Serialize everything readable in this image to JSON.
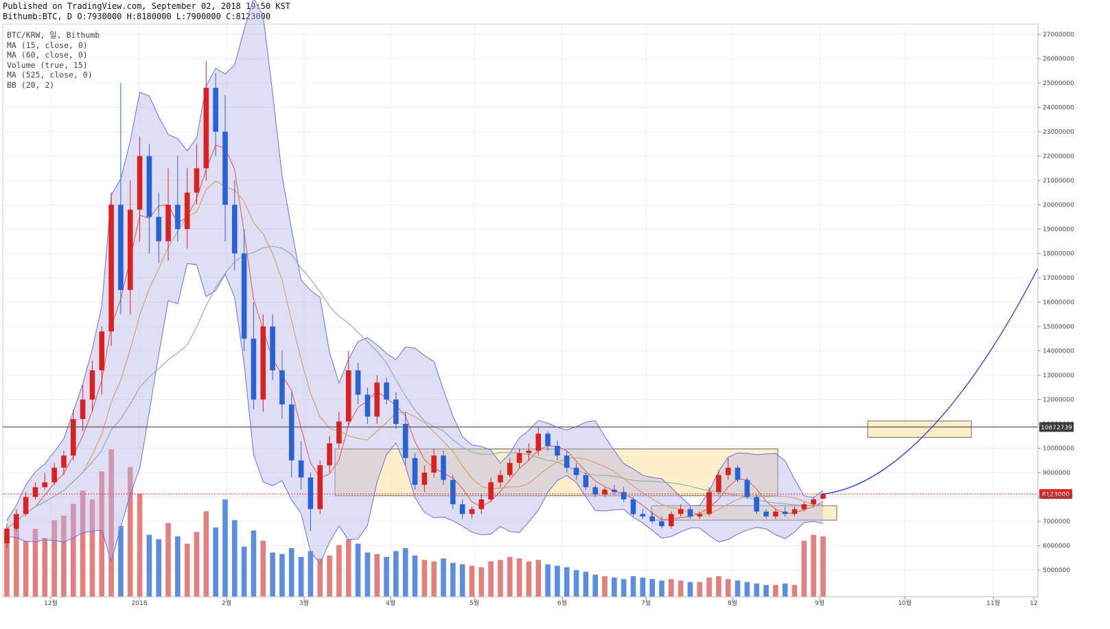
{
  "header": {
    "published": "Published on TradingView.com, September 02, 2018 19:50 KST",
    "ohlc": "Bithumb:BTC, D O:7930000 H:8180000 L:7900000 C:8123000"
  },
  "legend": [
    "BTC/KRW, 일, Bithumb",
    "MA (15, close, 0)",
    "MA (60, close, 0)",
    "Volume (true, 15)",
    "MA (525, close, 0)",
    "BB (20, 2)"
  ],
  "colors": {
    "up": "#d9211f",
    "down": "#2962d6",
    "upVol": "#e37f7e",
    "downVol": "#5b8de0",
    "ma15": "#e46a64",
    "ma60": "#d6a46e",
    "ma525": "#8fb4a7",
    "bb": "#6d6ee0",
    "bbFill": "#b7b6e8",
    "box": "#fde9ba",
    "trend": "#3131e6",
    "hline": "#555555",
    "priceLine": "#e12525"
  },
  "chart_data": {
    "type": "candlestick",
    "title": "BTC/KRW, 일, Bithumb",
    "ylim": [
      4500000,
      27500000
    ],
    "y_ticks": [
      5000000,
      6000000,
      7000000,
      8000000,
      9000000,
      10000000,
      11000000,
      12000000,
      13000000,
      14000000,
      15000000,
      16000000,
      17000000,
      18000000,
      19000000,
      20000000,
      21000000,
      22000000,
      23000000,
      24000000,
      25000000,
      26000000,
      27000000
    ],
    "x_ticks": [
      "12월",
      "2018",
      "2월",
      "3월",
      "4월",
      "5월",
      "6월",
      "7월",
      "8월",
      "9월",
      "10월",
      "11월",
      "12"
    ],
    "price_label": "8123000",
    "level_label": "10872739",
    "level_value": 10872739,
    "last_close": 8123000,
    "candles": [
      [
        6100000,
        6900000,
        5900000,
        6700000
      ],
      [
        6700000,
        7500000,
        6600000,
        7300000
      ],
      [
        7300000,
        8200000,
        7200000,
        8000000
      ],
      [
        8000000,
        8600000,
        7900000,
        8400000
      ],
      [
        8400000,
        9000000,
        8300000,
        8600000
      ],
      [
        8600000,
        9400000,
        8500000,
        9200000
      ],
      [
        9200000,
        9900000,
        8900000,
        9700000
      ],
      [
        9700000,
        11600000,
        9500000,
        11200000
      ],
      [
        11200000,
        12600000,
        10700000,
        12000000
      ],
      [
        12000000,
        13600000,
        11500000,
        13200000
      ],
      [
        13200000,
        15000000,
        12200000,
        14800000
      ],
      [
        14800000,
        20500000,
        14200000,
        20000000
      ],
      [
        20000000,
        25000000,
        15500000,
        16500000
      ],
      [
        16500000,
        21000000,
        15500000,
        19800000
      ],
      [
        19800000,
        22800000,
        18500000,
        22000000
      ],
      [
        22000000,
        22500000,
        18000000,
        19500000
      ],
      [
        19500000,
        20500000,
        17600000,
        18500000
      ],
      [
        18500000,
        21500000,
        17700000,
        20000000
      ],
      [
        20000000,
        22000000,
        18500000,
        19000000
      ],
      [
        19000000,
        21500000,
        18200000,
        20500000
      ],
      [
        20500000,
        22500000,
        20000000,
        21500000
      ],
      [
        21500000,
        25900000,
        21000000,
        24800000
      ],
      [
        24800000,
        25400000,
        22000000,
        23000000
      ],
      [
        23000000,
        24500000,
        18500000,
        20000000
      ],
      [
        20000000,
        21000000,
        17300000,
        18000000
      ],
      [
        18000000,
        19000000,
        14000000,
        14500000
      ],
      [
        14500000,
        16000000,
        11600000,
        12000000
      ],
      [
        12000000,
        15500000,
        11500000,
        15000000
      ],
      [
        15000000,
        15500000,
        12800000,
        13200000
      ],
      [
        13200000,
        14000000,
        11200000,
        11800000
      ],
      [
        11800000,
        12300000,
        8800000,
        9500000
      ],
      [
        9500000,
        10300000,
        8300000,
        8800000
      ],
      [
        8800000,
        9000000,
        6600000,
        7500000
      ],
      [
        7500000,
        9500000,
        7300000,
        9300000
      ],
      [
        9300000,
        10500000,
        9000000,
        10200000
      ],
      [
        10200000,
        11500000,
        10000000,
        11100000
      ],
      [
        11100000,
        14000000,
        10900000,
        13200000
      ],
      [
        13200000,
        13500000,
        11800000,
        12200000
      ],
      [
        12200000,
        12500000,
        11000000,
        11300000
      ],
      [
        11300000,
        13000000,
        11000000,
        12700000
      ],
      [
        12700000,
        12900000,
        11800000,
        12000000
      ],
      [
        12000000,
        12300000,
        10800000,
        11000000
      ],
      [
        11000000,
        11500000,
        9300000,
        9600000
      ],
      [
        9600000,
        9800000,
        8300000,
        8500000
      ],
      [
        8500000,
        9300000,
        8200000,
        9000000
      ],
      [
        9000000,
        10000000,
        8800000,
        9700000
      ],
      [
        9700000,
        9900000,
        8500000,
        8700000
      ],
      [
        8700000,
        8900000,
        7500000,
        7700000
      ],
      [
        7700000,
        7900000,
        7100000,
        7300000
      ],
      [
        7300000,
        7600000,
        7100000,
        7500000
      ],
      [
        7500000,
        8100000,
        7300000,
        7900000
      ],
      [
        7900000,
        8800000,
        7800000,
        8600000
      ],
      [
        8600000,
        9100000,
        8400000,
        8900000
      ],
      [
        8900000,
        9600000,
        8800000,
        9400000
      ],
      [
        9400000,
        10000000,
        9200000,
        9800000
      ],
      [
        9800000,
        10200000,
        9500000,
        9900000
      ],
      [
        9900000,
        10900000,
        9700000,
        10600000
      ],
      [
        10600000,
        10700000,
        9900000,
        10100000
      ],
      [
        10100000,
        10300000,
        9500000,
        9700000
      ],
      [
        9700000,
        9900000,
        9000000,
        9200000
      ],
      [
        9200000,
        9400000,
        8700000,
        8900000
      ],
      [
        8900000,
        9000000,
        8300000,
        8400000
      ],
      [
        8400000,
        8500000,
        8000000,
        8100000
      ],
      [
        8100000,
        8400000,
        8000000,
        8300000
      ],
      [
        8300000,
        8500000,
        8100000,
        8200000
      ],
      [
        8200000,
        8400000,
        7800000,
        7900000
      ],
      [
        7900000,
        8000000,
        7200000,
        7300000
      ],
      [
        7300000,
        7500000,
        7100000,
        7200000
      ],
      [
        7200000,
        7400000,
        6900000,
        7000000
      ],
      [
        7000000,
        7200000,
        6700000,
        6800000
      ],
      [
        6800000,
        7400000,
        6700000,
        7300000
      ],
      [
        7300000,
        7700000,
        7200000,
        7500000
      ],
      [
        7500000,
        7600000,
        7100000,
        7200000
      ],
      [
        7200000,
        7400000,
        7100000,
        7300000
      ],
      [
        7300000,
        8400000,
        7200000,
        8200000
      ],
      [
        8200000,
        9100000,
        8100000,
        8900000
      ],
      [
        8900000,
        9600000,
        8700000,
        9200000
      ],
      [
        9200000,
        9300000,
        8600000,
        8700000
      ],
      [
        8700000,
        8800000,
        7900000,
        8000000
      ],
      [
        8000000,
        8100000,
        7300000,
        7400000
      ],
      [
        7400000,
        7500000,
        7100000,
        7200000
      ],
      [
        7200000,
        7500000,
        7100000,
        7400000
      ],
      [
        7400000,
        7600000,
        7200000,
        7300000
      ],
      [
        7300000,
        7600000,
        7200000,
        7500000
      ],
      [
        7500000,
        7800000,
        7400000,
        7700000
      ],
      [
        7700000,
        8000000,
        7600000,
        7900000
      ],
      [
        7930000,
        8180000,
        7900000,
        8123000
      ]
    ],
    "volumes": [
      0.44,
      0.51,
      0.38,
      0.46,
      0.4,
      0.52,
      0.55,
      0.63,
      0.72,
      0.66,
      0.85,
      1.0,
      0.48,
      0.88,
      0.7,
      0.42,
      0.39,
      0.5,
      0.41,
      0.36,
      0.44,
      0.58,
      0.47,
      0.66,
      0.52,
      0.34,
      0.45,
      0.38,
      0.3,
      0.29,
      0.33,
      0.27,
      0.31,
      0.26,
      0.28,
      0.35,
      0.39,
      0.36,
      0.3,
      0.29,
      0.27,
      0.31,
      0.33,
      0.28,
      0.25,
      0.24,
      0.26,
      0.23,
      0.22,
      0.21,
      0.2,
      0.24,
      0.25,
      0.27,
      0.26,
      0.24,
      0.25,
      0.22,
      0.21,
      0.2,
      0.18,
      0.17,
      0.15,
      0.14,
      0.13,
      0.12,
      0.14,
      0.13,
      0.12,
      0.11,
      0.12,
      0.11,
      0.1,
      0.1,
      0.13,
      0.14,
      0.12,
      0.11,
      0.1,
      0.09,
      0.08,
      0.08,
      0.09,
      0.08,
      0.38,
      0.42,
      0.41
    ],
    "overlay_boxes": [
      {
        "price_top": 9970000,
        "price_bottom": 8050000
      },
      {
        "price_top": 7640000,
        "price_bottom": 7050000
      },
      {
        "price_top": 11120000,
        "price_bottom": 10450000
      }
    ]
  }
}
